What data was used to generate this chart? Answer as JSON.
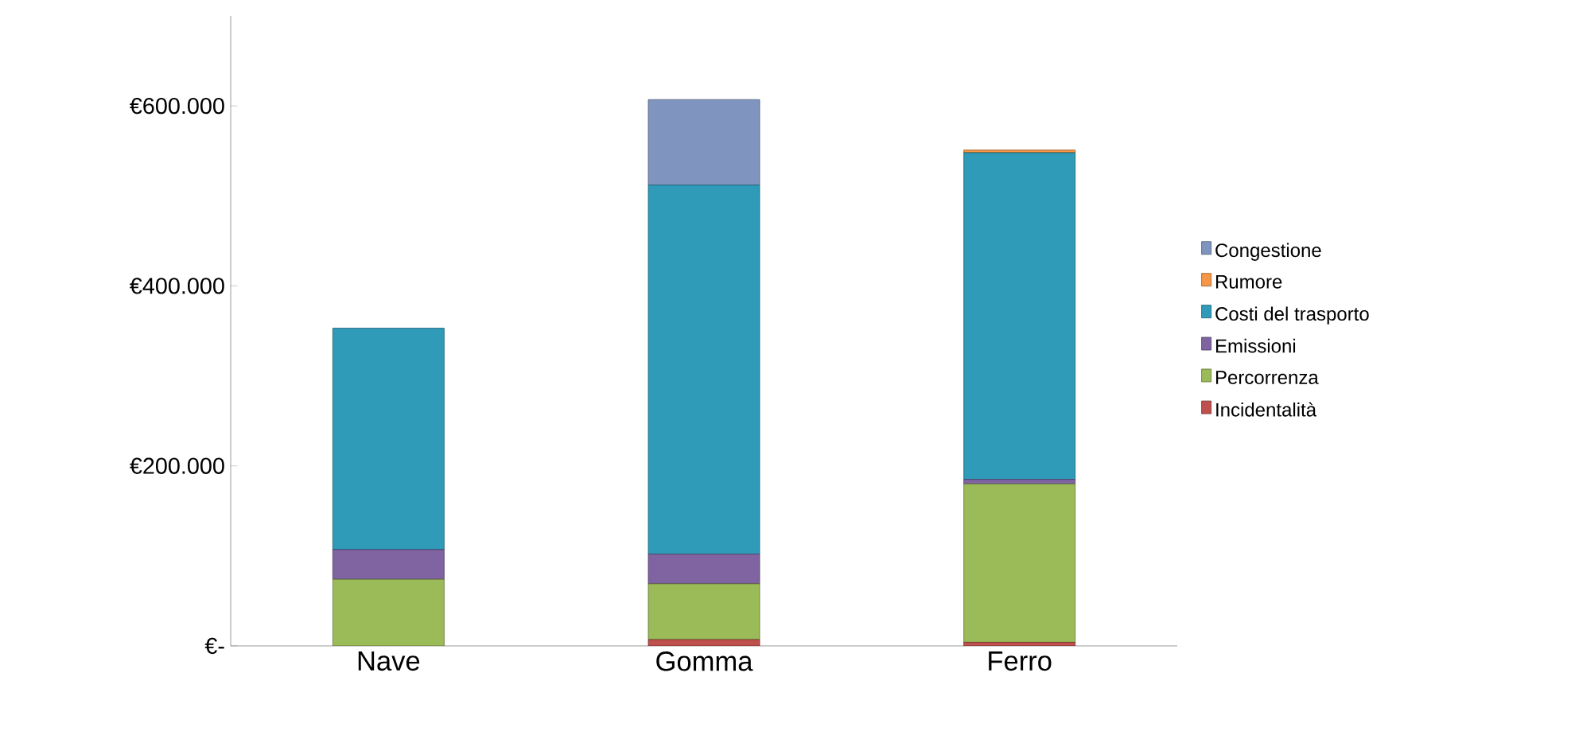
{
  "chart_data": {
    "type": "bar",
    "stacked": true,
    "categories": [
      "Nave",
      "Gomma",
      "Ferro"
    ],
    "series": [
      {
        "name": "Incidentalità",
        "color": "#c0504d",
        "values": [
          0,
          7000,
          4000
        ]
      },
      {
        "name": "Percorrenza",
        "color": "#9bbb59",
        "values": [
          74000,
          62000,
          176000
        ]
      },
      {
        "name": "Emissioni",
        "color": "#8064a2",
        "values": [
          33000,
          33000,
          5000
        ]
      },
      {
        "name": "Costi del trasporto",
        "color": "#2f9bb9",
        "values": [
          246000,
          410000,
          363000
        ]
      },
      {
        "name": "Rumore",
        "color": "#f79646",
        "values": [
          0,
          0,
          3000
        ]
      },
      {
        "name": "Congestione",
        "color": "#7f95c0",
        "values": [
          0,
          95000,
          0
        ]
      }
    ],
    "ylim": [
      0,
      700000
    ],
    "yticks": [
      {
        "value": 0,
        "label": "€-"
      },
      {
        "value": 200000,
        "label": "€200.000"
      },
      {
        "value": 400000,
        "label": "€400.000"
      },
      {
        "value": 600000,
        "label": "€600.000"
      }
    ],
    "legend": "right",
    "grid": false
  }
}
